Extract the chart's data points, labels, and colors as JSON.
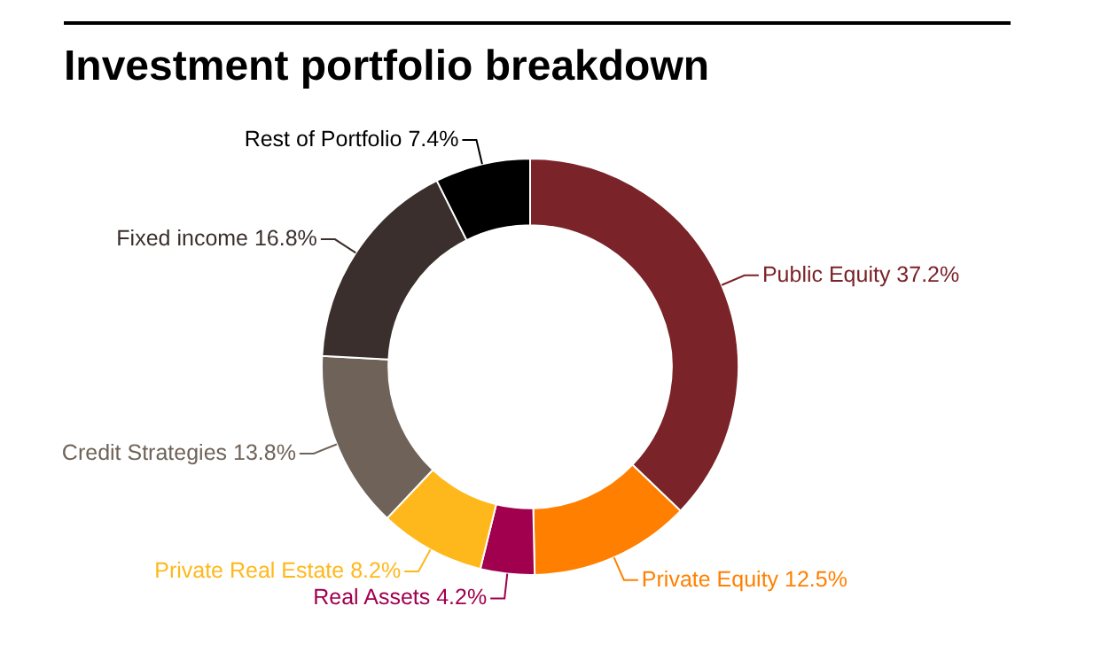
{
  "chart_data": {
    "type": "donut",
    "title": "Investment portfolio breakdown",
    "categories": [
      "Public Equity",
      "Private Equity",
      "Real Assets",
      "Private Real Estate",
      "Credit Strategies",
      "Fixed income",
      "Rest of Portfolio"
    ],
    "values": [
      37.2,
      12.5,
      4.2,
      8.2,
      13.8,
      16.8,
      7.4
    ],
    "value_labels": [
      "37.2%",
      "12.5%",
      "4.2%",
      "8.2%",
      "13.8%",
      "16.8%",
      "7.4%"
    ],
    "colors": [
      "#7a2328",
      "#ff8000",
      "#a0004e",
      "#ffb81c",
      "#6f6359",
      "#3a2f2c",
      "#000000"
    ]
  }
}
